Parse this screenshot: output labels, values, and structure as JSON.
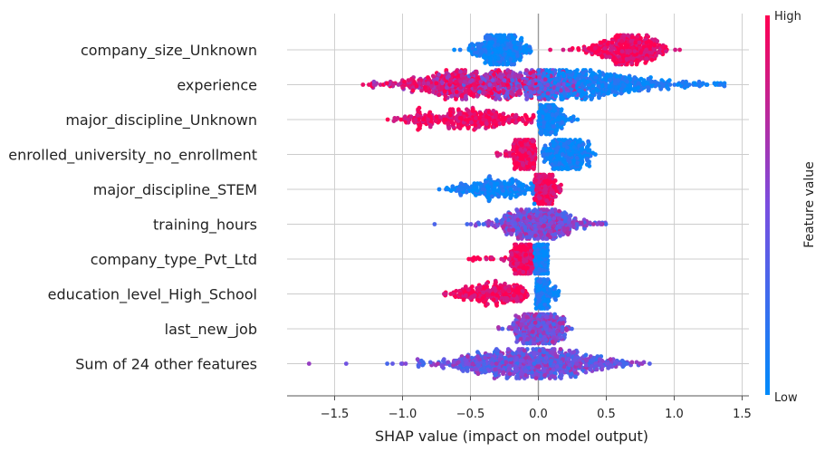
{
  "chart_data": {
    "type": "scatter",
    "subtype": "shap-beeswarm",
    "title": "",
    "xlabel": "SHAP value (impact on model output)",
    "xlim": [
      -1.85,
      1.55
    ],
    "x_ticks": [
      -1.5,
      -1.0,
      -0.5,
      0.0,
      0.5,
      1.0,
      1.5
    ],
    "x_tick_labels": [
      "−1.5",
      "−1.0",
      "−0.5",
      "0.0",
      "0.5",
      "1.0",
      "1.5"
    ],
    "grid": true,
    "colorbar": {
      "title": "Feature value",
      "high_label": "High",
      "low_label": "Low",
      "high_color": "#ff0052",
      "low_color": "#008bfb"
    },
    "features": [
      {
        "name": "company_size_Unknown",
        "clusters": [
          {
            "center": -0.28,
            "spread": 0.1,
            "min": -0.65,
            "max": -0.05,
            "value": 0.05,
            "n": 380
          },
          {
            "center": 0.65,
            "spread": 0.14,
            "min": 0.07,
            "max": 1.05,
            "value": 0.95,
            "n": 420
          }
        ]
      },
      {
        "name": "experience",
        "clusters": [
          {
            "center": -0.55,
            "spread": 0.28,
            "min": -1.3,
            "max": 0.0,
            "value": 0.85,
            "n": 520
          },
          {
            "center": -0.05,
            "spread": 0.22,
            "min": -0.6,
            "max": 0.35,
            "value": 0.5,
            "n": 300
          },
          {
            "center": 0.35,
            "spread": 0.32,
            "min": 0.0,
            "max": 1.37,
            "value": 0.08,
            "n": 520
          }
        ]
      },
      {
        "name": "major_discipline_Unknown",
        "clusters": [
          {
            "center": -0.5,
            "spread": 0.28,
            "min": -1.12,
            "max": -0.03,
            "value": 0.95,
            "n": 330
          },
          {
            "center": 0.06,
            "spread": 0.06,
            "min": 0.0,
            "max": 0.29,
            "value": 0.05,
            "n": 250
          }
        ]
      },
      {
        "name": "enrolled_university_no_enrollment",
        "clusters": [
          {
            "center": -0.08,
            "spread": 0.06,
            "min": -0.32,
            "max": -0.02,
            "value": 0.95,
            "n": 300
          },
          {
            "center": 0.2,
            "spread": 0.1,
            "min": 0.03,
            "max": 0.42,
            "value": 0.05,
            "n": 300
          }
        ]
      },
      {
        "name": "major_discipline_STEM",
        "clusters": [
          {
            "center": 0.03,
            "spread": 0.04,
            "min": -0.03,
            "max": 0.17,
            "value": 0.95,
            "n": 320
          },
          {
            "center": -0.3,
            "spread": 0.18,
            "min": -0.75,
            "max": -0.02,
            "value": 0.05,
            "n": 220
          }
        ]
      },
      {
        "name": "training_hours",
        "clusters": [
          {
            "center": 0.0,
            "spread": 0.18,
            "min": -1.08,
            "max": 0.5,
            "value": 0.5,
            "n": 520
          }
        ]
      },
      {
        "name": "company_type_Pvt_Ltd",
        "clusters": [
          {
            "center": -0.1,
            "spread": 0.05,
            "min": -0.55,
            "max": -0.04,
            "value": 0.95,
            "n": 300
          },
          {
            "center": 0.02,
            "spread": 0.03,
            "min": -0.03,
            "max": 0.07,
            "value": 0.05,
            "n": 280
          }
        ]
      },
      {
        "name": "education_level_High_School",
        "clusters": [
          {
            "center": -0.3,
            "spread": 0.18,
            "min": -0.7,
            "max": -0.08,
            "value": 0.95,
            "n": 240
          },
          {
            "center": 0.02,
            "spread": 0.03,
            "min": -0.02,
            "max": 0.15,
            "value": 0.05,
            "n": 300
          }
        ]
      },
      {
        "name": "last_new_job",
        "clusters": [
          {
            "center": 0.0,
            "spread": 0.1,
            "min": -0.48,
            "max": 0.25,
            "value": 0.5,
            "n": 420
          }
        ]
      },
      {
        "name": "Sum of 24 other features",
        "clusters": [
          {
            "center": -0.05,
            "spread": 0.35,
            "min": -1.7,
            "max": 0.82,
            "value": 0.45,
            "n": 820
          }
        ]
      }
    ]
  }
}
